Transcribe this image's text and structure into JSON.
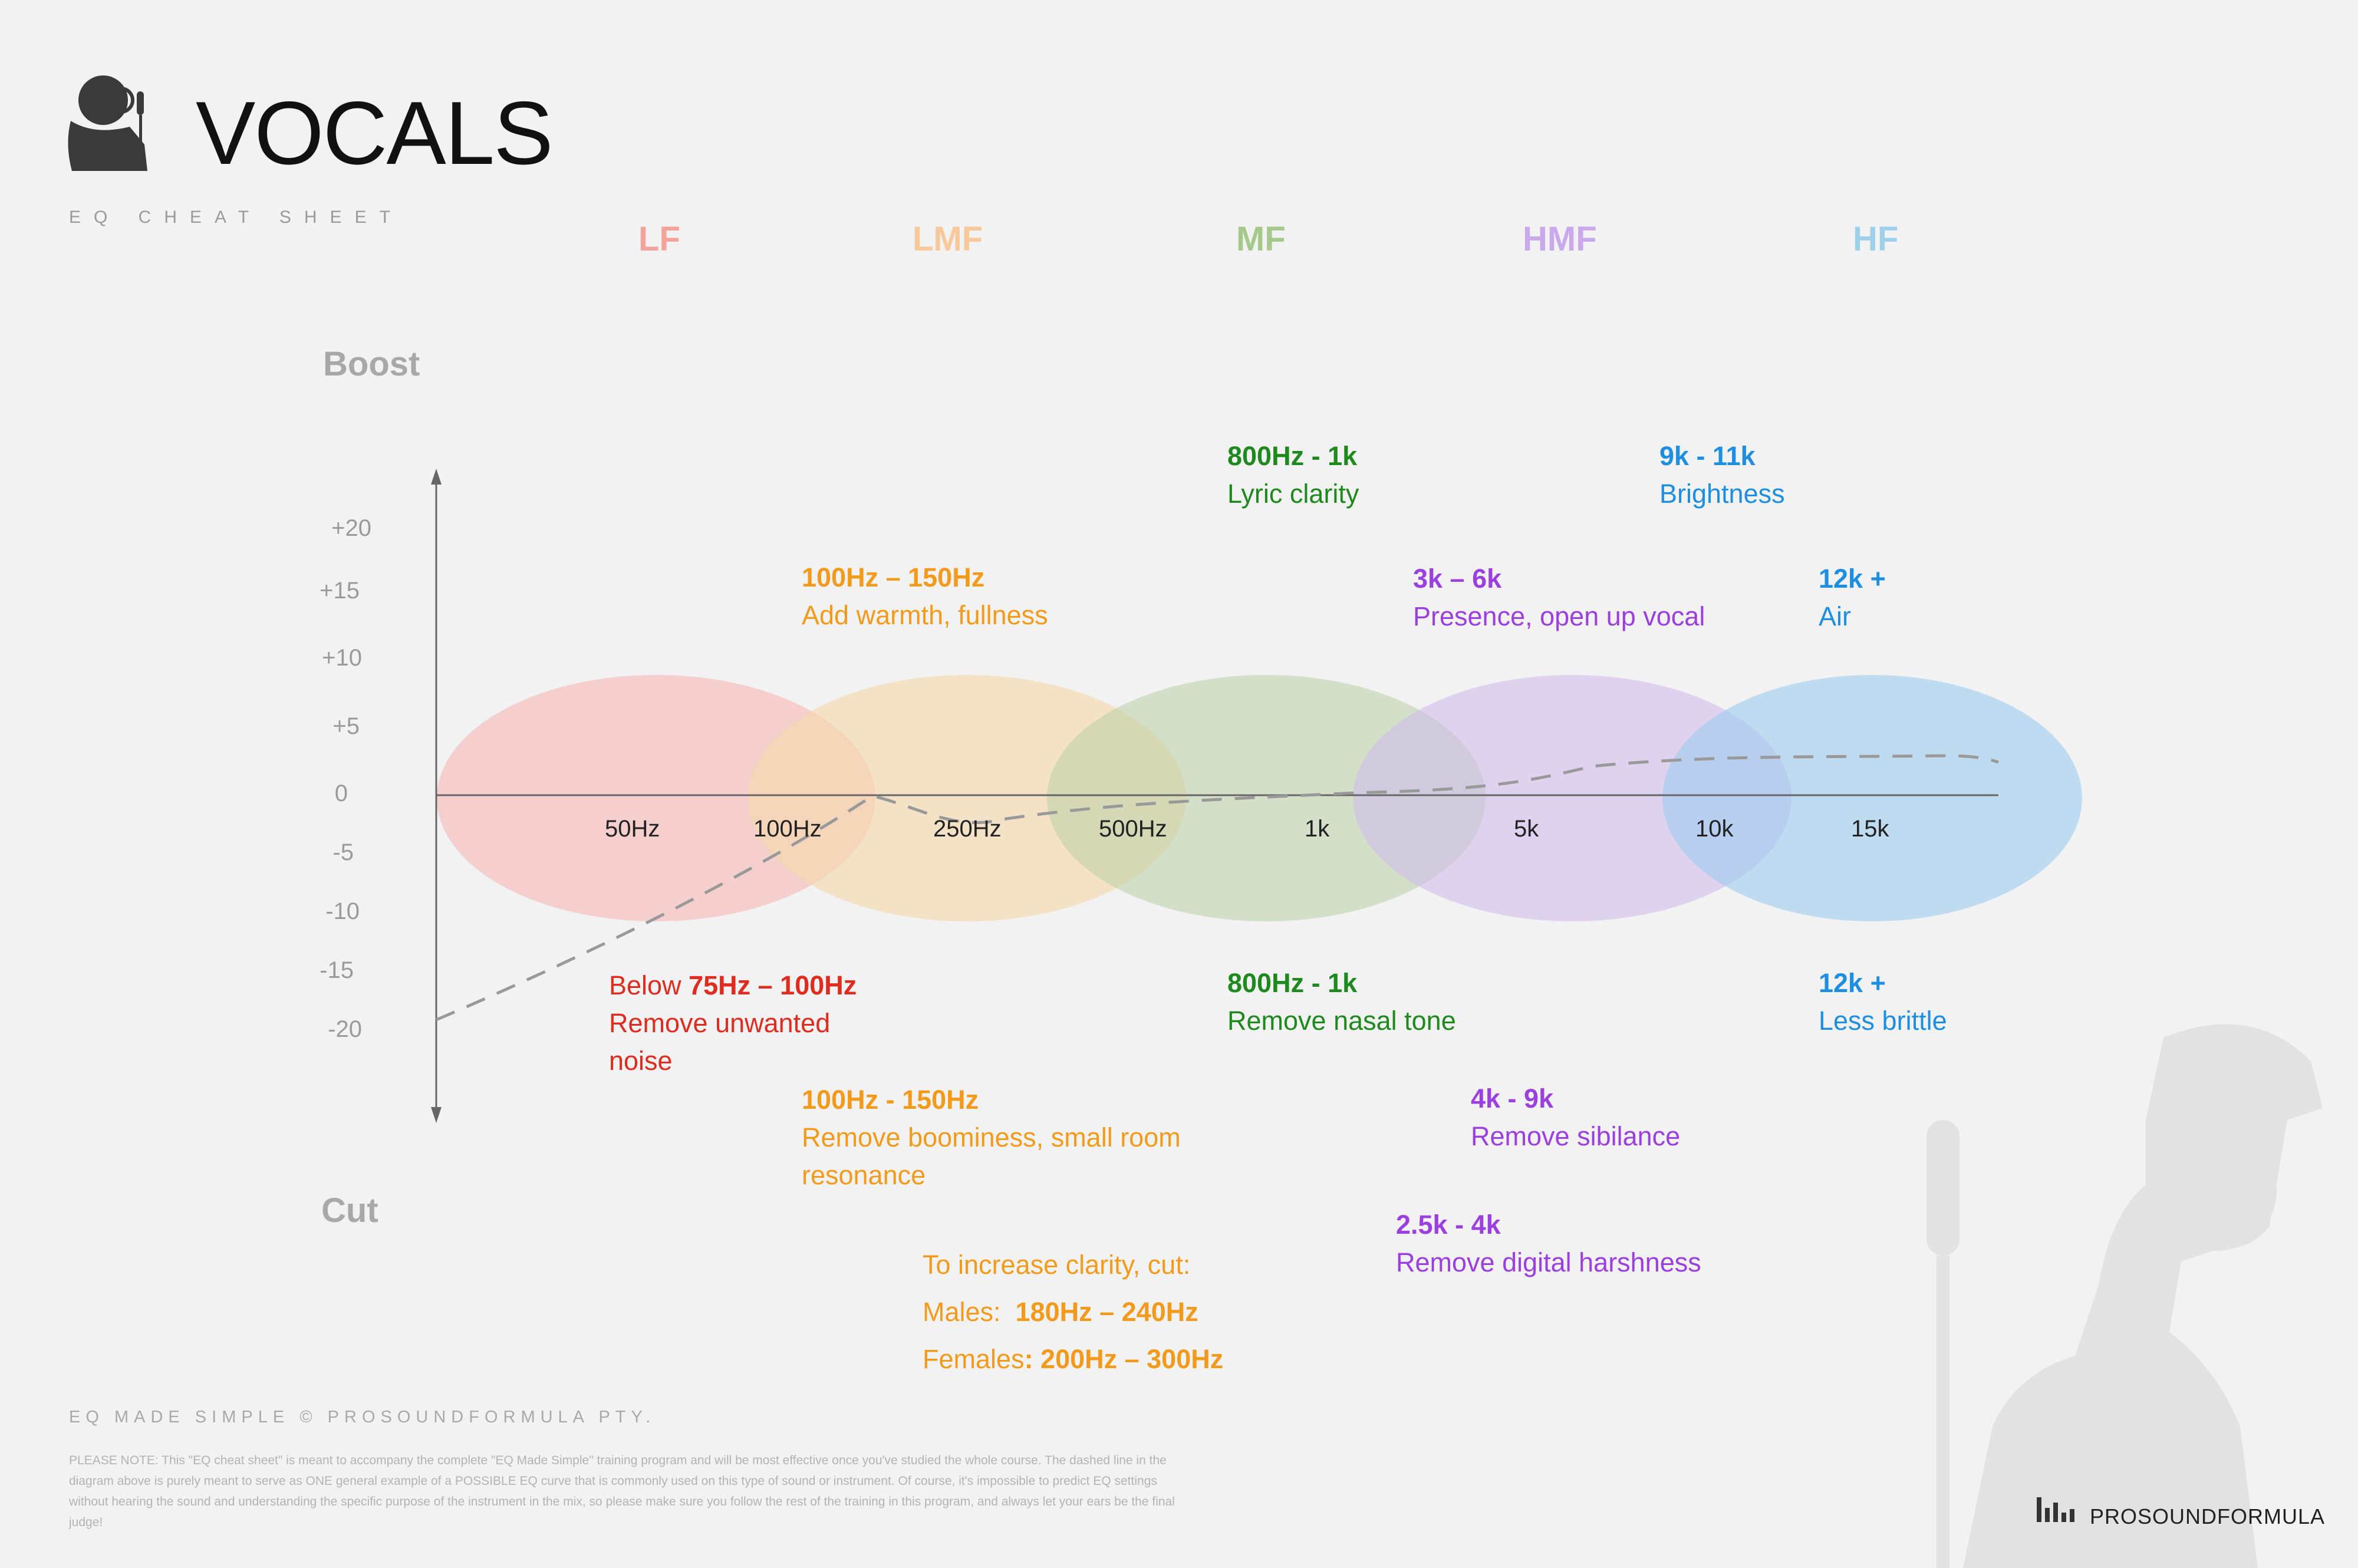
{
  "header": {
    "title": "VOCALS",
    "subtitle": "EQ CHEAT SHEET"
  },
  "bands": [
    {
      "label": "LF",
      "color": "#f3a39a",
      "fill": "#f5c9c6"
    },
    {
      "label": "LMF",
      "color": "#f7c89a",
      "fill": "#f4dcb6"
    },
    {
      "label": "MF",
      "color": "#a4c98a",
      "fill": "#c9d9bb"
    },
    {
      "label": "HMF",
      "color": "#c9a8ec",
      "fill": "#dbccee"
    },
    {
      "label": "HF",
      "color": "#9fd0ea",
      "fill": "#aed6f1"
    }
  ],
  "axis": {
    "boost_label": "Boost",
    "cut_label": "Cut",
    "y_ticks": [
      "+20",
      "+15",
      "+10",
      "+5",
      "0",
      "-5",
      "-10",
      "-15",
      "-20"
    ],
    "x_ticks": [
      "50Hz",
      "100Hz",
      "250Hz",
      "500Hz",
      "1k",
      "5k",
      "10k",
      "15k"
    ]
  },
  "boost_notes": {
    "mf": {
      "freq": "800Hz - 1k",
      "desc": "Lyric clarity"
    },
    "hf_brightness": {
      "freq": "9k - 11k",
      "desc": "Brightness"
    },
    "lmf": {
      "freq": "100Hz – 150Hz",
      "desc": "Add warmth, fullness"
    },
    "hmf": {
      "freq": "3k – 6k",
      "desc": "Presence, open up vocal"
    },
    "hf_air": {
      "freq": "12k +",
      "desc": "Air"
    }
  },
  "cut_notes": {
    "lf": {
      "prefix": "Below ",
      "freq": "75Hz – 100Hz",
      "desc_line1": "Remove unwanted",
      "desc_line2": "noise"
    },
    "mf": {
      "freq": "800Hz - 1k",
      "desc": "Remove nasal tone"
    },
    "hf": {
      "freq": "12k +",
      "desc": "Less brittle"
    },
    "lmf": {
      "freq": "100Hz - 150Hz",
      "desc_line1": "Remove boominess, small room",
      "desc_line2": "resonance"
    },
    "hmf_sibilance": {
      "freq": "4k - 9k",
      "desc": "Remove sibilance"
    },
    "hmf_harsh": {
      "freq": "2.5k - 4k",
      "desc": "Remove digital harshness"
    },
    "clarity": {
      "intro": "To increase clarity, cut:",
      "males_label": "Males:  ",
      "males_freq": "180Hz – 240Hz",
      "females_label": "Females",
      "females_freq": ": 200Hz – 300Hz"
    }
  },
  "colors": {
    "lf_text": "#e02b1f",
    "lmf_text": "#f39a1b",
    "mf_text": "#1e8a1e",
    "hmf_text": "#9b3fe0",
    "hf_text": "#1e8ee0"
  },
  "footer": {
    "credit": "EQ MADE SIMPLE  © PROSOUNDFORMULA PTY.",
    "note": "PLEASE NOTE: This \"EQ cheat sheet\" is meant to accompany the complete \"EQ Made Simple\" training program and will be most effective once you've studied the whole course. The dashed line in the diagram above is purely meant to serve as ONE general example of a POSSIBLE EQ curve that is commonly used on this type of sound or instrument. Of course, it's impossible to predict EQ settings without hearing the sound and understanding the specific purpose of the instrument in the mix, so please make sure you follow the rest of the training in this program, and always let your ears be the final judge!",
    "brand": "PROSOUNDFORMULA"
  }
}
